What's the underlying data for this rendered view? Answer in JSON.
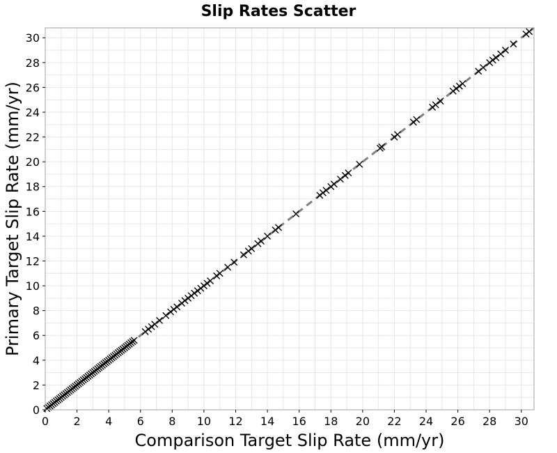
{
  "chart_data": {
    "type": "scatter",
    "title": "Slip Rates Scatter",
    "xlabel": "Comparison Target Slip Rate (mm/yr)",
    "ylabel": "Primary Target Slip Rate (mm/yr)",
    "xlim": [
      0,
      30.8
    ],
    "ylim": [
      0,
      30.8
    ],
    "xticks": [
      0,
      2,
      4,
      6,
      8,
      10,
      12,
      14,
      16,
      18,
      20,
      22,
      24,
      26,
      28,
      30
    ],
    "yticks": [
      0,
      2,
      4,
      6,
      8,
      10,
      12,
      14,
      16,
      18,
      20,
      22,
      24,
      26,
      28,
      30
    ],
    "grid": true,
    "marker": "x",
    "reference_line": {
      "style": "dashed",
      "color": "#808080",
      "from": [
        0,
        0
      ],
      "to": [
        30.8,
        30.8
      ]
    },
    "series": [
      {
        "x": [
          0.1,
          0.2,
          0.3,
          0.4,
          0.5,
          0.6,
          0.7,
          0.8,
          0.9,
          1.0,
          1.1,
          1.2,
          1.3,
          1.4,
          1.5,
          1.6,
          1.7,
          1.8,
          1.9,
          2.0,
          2.1,
          2.2,
          2.3,
          2.4,
          2.5,
          2.6,
          2.7,
          2.8,
          2.9,
          3.0,
          3.1,
          3.2,
          3.3,
          3.4,
          3.5,
          3.6,
          3.7,
          3.8,
          3.9,
          4.0,
          4.1,
          4.2,
          4.3,
          4.4,
          4.5,
          4.6,
          4.7,
          4.8,
          4.9,
          5.0,
          5.1,
          5.2,
          5.3,
          5.4,
          5.5,
          5.6,
          6.3,
          6.5,
          6.7,
          6.9,
          7.2,
          7.6,
          7.9,
          8.1,
          8.3,
          8.6,
          8.8,
          9.0,
          9.2,
          9.4,
          9.6,
          9.8,
          10.0,
          10.2,
          10.4,
          10.8,
          11.0,
          11.5,
          11.9,
          12.5,
          12.8,
          13.0,
          13.4,
          13.6,
          14.0,
          14.5,
          14.7,
          15.8,
          17.3,
          17.5,
          17.7,
          18.0,
          18.2,
          18.6,
          18.9,
          19.1,
          19.8,
          21.1,
          21.2,
          22.0,
          22.2,
          23.2,
          23.4,
          24.4,
          24.6,
          24.9,
          25.7,
          25.9,
          26.1,
          26.3,
          27.3,
          27.6,
          28.0,
          28.2,
          28.4,
          28.7,
          29.0,
          29.5,
          30.3,
          30.5
        ],
        "y": [
          0.1,
          0.2,
          0.3,
          0.4,
          0.5,
          0.6,
          0.7,
          0.8,
          0.9,
          1.0,
          1.1,
          1.2,
          1.3,
          1.4,
          1.5,
          1.6,
          1.7,
          1.8,
          1.9,
          2.0,
          2.1,
          2.2,
          2.3,
          2.4,
          2.5,
          2.6,
          2.7,
          2.8,
          2.9,
          3.0,
          3.1,
          3.2,
          3.3,
          3.4,
          3.5,
          3.6,
          3.7,
          3.8,
          3.9,
          4.0,
          4.1,
          4.2,
          4.3,
          4.4,
          4.5,
          4.6,
          4.7,
          4.8,
          4.9,
          5.0,
          5.1,
          5.2,
          5.3,
          5.4,
          5.5,
          5.6,
          6.3,
          6.5,
          6.7,
          6.9,
          7.2,
          7.6,
          7.9,
          8.1,
          8.3,
          8.6,
          8.8,
          9.0,
          9.2,
          9.4,
          9.6,
          9.8,
          10.0,
          10.2,
          10.4,
          10.8,
          11.0,
          11.5,
          11.9,
          12.5,
          12.8,
          13.0,
          13.4,
          13.6,
          14.0,
          14.5,
          14.7,
          15.8,
          17.3,
          17.5,
          17.7,
          18.0,
          18.2,
          18.6,
          18.9,
          19.1,
          19.8,
          21.1,
          21.2,
          22.0,
          22.2,
          23.2,
          23.4,
          24.4,
          24.6,
          24.9,
          25.7,
          25.9,
          26.1,
          26.3,
          27.3,
          27.6,
          28.0,
          28.2,
          28.4,
          28.7,
          29.0,
          29.5,
          30.3,
          30.5
        ]
      }
    ]
  }
}
